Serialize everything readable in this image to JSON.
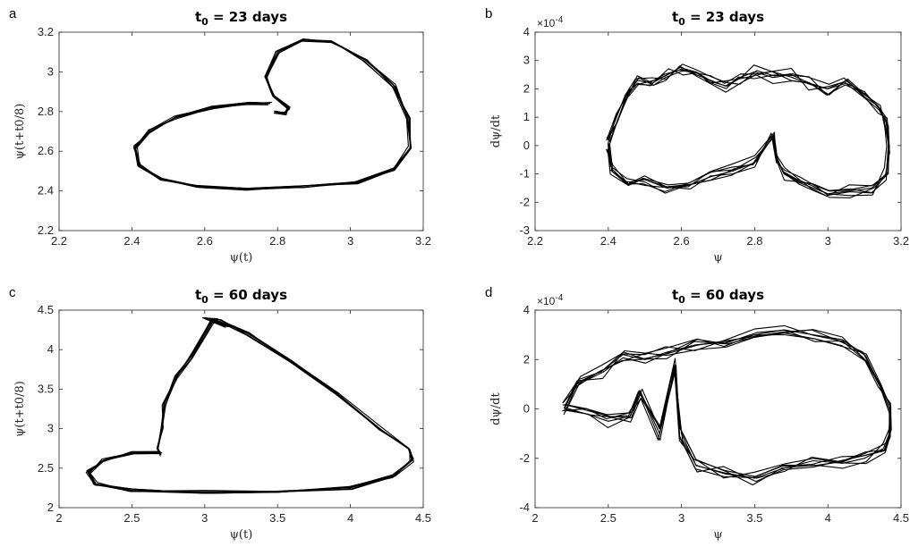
{
  "chart_data": [
    {
      "panel": "a",
      "type": "line",
      "title": "t0 = 23 days",
      "title_main": "t",
      "title_sub": "0",
      "title_rest": " = 23 days",
      "xlabel": "ψ(t)",
      "ylabel": "ψ(t+t0/8)",
      "xlim": [
        2.2,
        3.2
      ],
      "ylim": [
        2.2,
        3.2
      ],
      "xticks": [
        "2.2",
        "2.4",
        "2.6",
        "2.8",
        "3",
        "3.2"
      ],
      "yticks": [
        "2.2",
        "2.4",
        "2.6",
        "2.8",
        "3",
        "3.2"
      ],
      "grid": false,
      "series": [
        {
          "x": [
            2.78,
            2.72,
            2.62,
            2.52,
            2.45,
            2.41,
            2.42,
            2.48,
            2.58,
            2.72,
            2.88,
            3.02,
            3.12,
            3.165,
            3.16,
            3.12,
            3.04,
            2.95,
            2.87,
            2.8,
            2.77,
            2.79,
            2.83,
            2.82,
            2.79
          ],
          "y": [
            2.84,
            2.84,
            2.82,
            2.77,
            2.7,
            2.62,
            2.53,
            2.46,
            2.42,
            2.41,
            2.42,
            2.44,
            2.51,
            2.62,
            2.77,
            2.93,
            3.06,
            3.15,
            3.16,
            3.1,
            2.97,
            2.88,
            2.82,
            2.79,
            2.8
          ]
        }
      ]
    },
    {
      "panel": "b",
      "type": "line",
      "title": "t0 = 23 days",
      "title_main": "t",
      "title_sub": "0",
      "title_rest": " = 23 days",
      "xlabel": "ψ",
      "ylabel": "dψ/dt",
      "exponent_label": "×10",
      "exponent_power": "-4",
      "xlim": [
        2.2,
        3.2
      ],
      "ylim": [
        -3,
        4
      ],
      "xticks": [
        "2.2",
        "2.4",
        "2.6",
        "2.8",
        "3",
        "3.2"
      ],
      "yticks": [
        "-3",
        "-2",
        "-1",
        "0",
        "1",
        "2",
        "3",
        "4"
      ],
      "grid": false,
      "series": [
        {
          "x": [
            2.4,
            2.42,
            2.45,
            2.48,
            2.52,
            2.56,
            2.6,
            2.64,
            2.68,
            2.72,
            2.76,
            2.8,
            2.85,
            2.9,
            2.95,
            3.0,
            3.05,
            3.1,
            3.14,
            3.16,
            3.165,
            3.16,
            3.12,
            3.06,
            3.0,
            2.96,
            2.92,
            2.88,
            2.86,
            2.85,
            2.8,
            2.74,
            2.68,
            2.62,
            2.56,
            2.5,
            2.45,
            2.41,
            2.4
          ],
          "y": [
            0.1,
            1.0,
            1.8,
            2.3,
            2.2,
            2.5,
            2.7,
            2.5,
            2.3,
            2.1,
            2.4,
            2.6,
            2.4,
            2.5,
            2.2,
            2.0,
            2.2,
            1.9,
            1.3,
            0.8,
            0.0,
            -1.0,
            -1.5,
            -1.6,
            -1.7,
            -1.5,
            -1.3,
            -1.0,
            -0.4,
            0.3,
            -0.6,
            -0.9,
            -1.1,
            -1.4,
            -1.5,
            -1.2,
            -1.3,
            -0.9,
            0.1
          ]
        }
      ]
    },
    {
      "panel": "c",
      "type": "line",
      "title": "t0 = 60 days",
      "title_main": "t",
      "title_sub": "0",
      "title_rest": " = 60 days",
      "xlabel": "ψ(t)",
      "ylabel": "ψ(t+t0/8)",
      "xlim": [
        2,
        4.5
      ],
      "ylim": [
        2,
        4.5
      ],
      "xticks": [
        "2",
        "2.5",
        "3",
        "3.5",
        "4",
        "4.5"
      ],
      "yticks": [
        "2",
        "2.5",
        "3",
        "3.5",
        "4",
        "4.5"
      ],
      "grid": false,
      "series": [
        {
          "x": [
            2.7,
            2.5,
            2.3,
            2.2,
            2.25,
            2.5,
            3.0,
            3.5,
            4.0,
            4.3,
            4.42,
            4.4,
            4.2,
            3.9,
            3.6,
            3.3,
            3.1,
            3.0,
            3.15,
            3.05,
            2.9,
            2.8,
            2.72,
            2.7,
            2.68,
            2.7
          ],
          "y": [
            2.7,
            2.7,
            2.6,
            2.45,
            2.3,
            2.22,
            2.2,
            2.21,
            2.25,
            2.4,
            2.6,
            2.75,
            3.0,
            3.45,
            3.85,
            4.2,
            4.38,
            4.4,
            4.3,
            4.35,
            3.9,
            3.65,
            3.3,
            3.0,
            2.75,
            2.67
          ]
        }
      ]
    },
    {
      "panel": "d",
      "type": "line",
      "title": "t0 = 60 days",
      "title_main": "t",
      "title_sub": "0",
      "title_rest": " = 60 days",
      "xlabel": "ψ",
      "ylabel": "dψ/dt",
      "exponent_label": "×10",
      "exponent_power": "-4",
      "xlim": [
        2,
        4.5
      ],
      "ylim": [
        -4,
        4
      ],
      "xticks": [
        "2",
        "2.5",
        "3",
        "3.5",
        "4",
        "4.5"
      ],
      "yticks": [
        "-4",
        "-2",
        "0",
        "2",
        "4"
      ],
      "grid": false,
      "series": [
        {
          "x": [
            2.2,
            2.3,
            2.45,
            2.6,
            2.75,
            2.9,
            3.1,
            3.3,
            3.5,
            3.7,
            3.9,
            4.1,
            4.25,
            4.35,
            4.42,
            4.42,
            4.38,
            4.25,
            4.1,
            3.9,
            3.7,
            3.5,
            3.3,
            3.1,
            3.0,
            2.95,
            2.85,
            2.72,
            2.65,
            2.5,
            2.35,
            2.2
          ],
          "y": [
            0.0,
            1.2,
            1.5,
            2.2,
            2.0,
            2.3,
            2.6,
            2.7,
            3.0,
            3.2,
            3.0,
            2.8,
            2.2,
            1.0,
            0.0,
            -1.0,
            -1.6,
            -2.0,
            -2.2,
            -2.1,
            -2.4,
            -2.8,
            -2.6,
            -2.3,
            -1.0,
            1.8,
            -1.0,
            0.7,
            -0.3,
            -0.5,
            -0.2,
            0.0
          ]
        }
      ]
    }
  ]
}
